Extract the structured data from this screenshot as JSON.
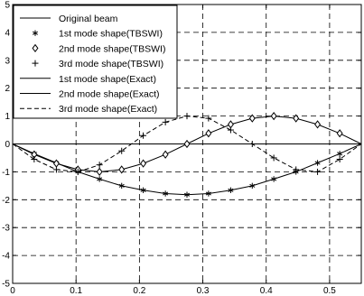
{
  "chart_data": {
    "type": "line",
    "title": "",
    "xlabel": "",
    "ylabel": "",
    "xlim": [
      0,
      0.55
    ],
    "ylim": [
      -5,
      5
    ],
    "xticks": [
      0,
      0.1,
      0.2,
      0.3,
      0.4,
      0.5
    ],
    "yticks": [
      -5,
      -4,
      -3,
      -2,
      -1,
      0,
      1,
      2,
      3,
      4,
      5
    ],
    "grid": true,
    "grid_style": "dashed",
    "legend_position": "top-left",
    "series": [
      {
        "name": "Original beam",
        "style": "solid",
        "marker": "none",
        "x": [
          0,
          0.55
        ],
        "y": [
          0,
          0
        ]
      },
      {
        "name": "1st mode shape(TBSWI)",
        "style": "none",
        "marker": "asterisk",
        "x": [
          0,
          0.034,
          0.069,
          0.103,
          0.137,
          0.172,
          0.206,
          0.241,
          0.275,
          0.309,
          0.344,
          0.378,
          0.412,
          0.447,
          0.481,
          0.516,
          0.55
        ],
        "y": [
          0,
          -0.35,
          -0.68,
          -1.0,
          -1.26,
          -1.5,
          -1.66,
          -1.78,
          -1.82,
          -1.78,
          -1.66,
          -1.5,
          -1.26,
          -1.0,
          -0.68,
          -0.35,
          0
        ]
      },
      {
        "name": "2nd mode shape(TBSWI)",
        "style": "none",
        "marker": "diamond",
        "x": [
          0,
          0.034,
          0.069,
          0.103,
          0.137,
          0.172,
          0.206,
          0.241,
          0.275,
          0.309,
          0.344,
          0.378,
          0.412,
          0.447,
          0.481,
          0.516,
          0.55
        ],
        "y": [
          0,
          -0.38,
          -0.7,
          -0.92,
          -1.0,
          -0.92,
          -0.7,
          -0.38,
          0,
          0.38,
          0.7,
          0.92,
          1.0,
          0.92,
          0.7,
          0.38,
          0
        ]
      },
      {
        "name": "3rd mode shape(TBSWI)",
        "style": "none",
        "marker": "plus",
        "x": [
          0,
          0.034,
          0.069,
          0.103,
          0.137,
          0.172,
          0.206,
          0.241,
          0.275,
          0.309,
          0.344,
          0.378,
          0.412,
          0.447,
          0.481,
          0.516,
          0.55
        ],
        "y": [
          0,
          -0.55,
          -0.92,
          -1.0,
          -0.75,
          -0.25,
          0.3,
          0.78,
          1.0,
          0.92,
          0.5,
          0.0,
          -0.5,
          -0.92,
          -1.0,
          -0.55,
          0
        ]
      },
      {
        "name": "1st mode shape(Exact)",
        "style": "solid",
        "marker": "none",
        "x": [
          0,
          0.034,
          0.069,
          0.103,
          0.137,
          0.172,
          0.206,
          0.241,
          0.275,
          0.309,
          0.344,
          0.378,
          0.412,
          0.447,
          0.481,
          0.516,
          0.55
        ],
        "y": [
          0,
          -0.35,
          -0.68,
          -1.0,
          -1.26,
          -1.5,
          -1.66,
          -1.78,
          -1.82,
          -1.78,
          -1.66,
          -1.5,
          -1.26,
          -1.0,
          -0.68,
          -0.35,
          0
        ]
      },
      {
        "name": "2nd mode shape(Exact)",
        "style": "solid",
        "marker": "none",
        "x": [
          0,
          0.034,
          0.069,
          0.103,
          0.137,
          0.172,
          0.206,
          0.241,
          0.275,
          0.309,
          0.344,
          0.378,
          0.412,
          0.447,
          0.481,
          0.516,
          0.55
        ],
        "y": [
          0,
          -0.38,
          -0.7,
          -0.92,
          -1.0,
          -0.92,
          -0.7,
          -0.38,
          0,
          0.38,
          0.7,
          0.92,
          1.0,
          0.92,
          0.7,
          0.38,
          0
        ]
      },
      {
        "name": "3rd mode shape(Exact)",
        "style": "dashed",
        "marker": "none",
        "x": [
          0,
          0.034,
          0.069,
          0.103,
          0.137,
          0.172,
          0.206,
          0.241,
          0.275,
          0.309,
          0.344,
          0.378,
          0.412,
          0.447,
          0.481,
          0.516,
          0.55
        ],
        "y": [
          0,
          -0.55,
          -0.92,
          -1.0,
          -0.75,
          -0.25,
          0.3,
          0.78,
          1.0,
          0.92,
          0.5,
          0.0,
          -0.5,
          -0.92,
          -1.0,
          -0.55,
          0
        ]
      }
    ]
  }
}
